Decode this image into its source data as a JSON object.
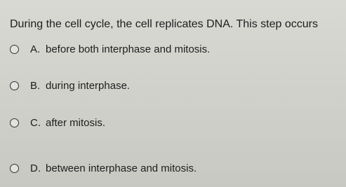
{
  "question": "During the cell cycle, the cell replicates DNA. This step occurs",
  "options": [
    {
      "letter": "A.",
      "text": "before both interphase and mitosis."
    },
    {
      "letter": "B.",
      "text": "during interphase."
    },
    {
      "letter": "C.",
      "text": "after mitosis."
    },
    {
      "letter": "D.",
      "text": "between interphase and mitosis."
    }
  ]
}
